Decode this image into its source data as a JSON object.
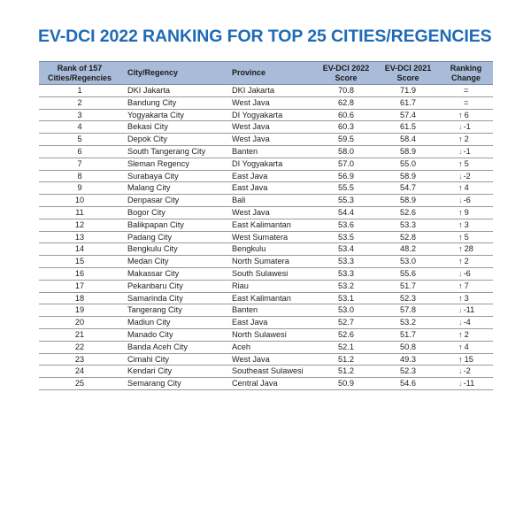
{
  "title": "EV-DCI 2022 RANKING FOR TOP 25 CITIES/REGENCIES",
  "headers": {
    "rank": "Rank of 157 Cities/Regencies",
    "city": "City/Regency",
    "province": "Province",
    "score2022": "EV-DCI 2022 Score",
    "score2021": "EV-DCI 2021 Score",
    "change": "Ranking Change"
  },
  "colors": {
    "title": "#1f6bb5",
    "header_bg": "#a8bbd8",
    "arrow_up": "#1a1a1a",
    "arrow_down": "#2f8fd0"
  },
  "rows": [
    {
      "rank": "1",
      "city": "DKI Jakarta",
      "province": "DKI Jakarta",
      "s22": "70.8",
      "s21": "71.9",
      "dir": "same",
      "change": "="
    },
    {
      "rank": "2",
      "city": "Bandung City",
      "province": "West Java",
      "s22": "62.8",
      "s21": "61.7",
      "dir": "same",
      "change": "="
    },
    {
      "rank": "3",
      "city": "Yogyakarta City",
      "province": "DI Yogyakarta",
      "s22": "60.6",
      "s21": "57.4",
      "dir": "up",
      "change": "6"
    },
    {
      "rank": "4",
      "city": "Bekasi City",
      "province": "West Java",
      "s22": "60.3",
      "s21": "61.5",
      "dir": "down",
      "change": "-1"
    },
    {
      "rank": "5",
      "city": "Depok City",
      "province": "West Java",
      "s22": "59.5",
      "s21": "58.4",
      "dir": "up",
      "change": "2"
    },
    {
      "rank": "6",
      "city": "South Tangerang City",
      "province": "Banten",
      "s22": "58.0",
      "s21": "58.9",
      "dir": "down",
      "change": "-1"
    },
    {
      "rank": "7",
      "city": "Sleman Regency",
      "province": "DI Yogyakarta",
      "s22": "57.0",
      "s21": "55.0",
      "dir": "up",
      "change": "5"
    },
    {
      "rank": "8",
      "city": "Surabaya City",
      "province": "East Java",
      "s22": "56.9",
      "s21": "58.9",
      "dir": "down",
      "change": "-2"
    },
    {
      "rank": "9",
      "city": "Malang City",
      "province": "East Java",
      "s22": "55.5",
      "s21": "54.7",
      "dir": "up",
      "change": "4"
    },
    {
      "rank": "10",
      "city": "Denpasar City",
      "province": "Bali",
      "s22": "55.3",
      "s21": "58.9",
      "dir": "down",
      "change": "-6"
    },
    {
      "rank": "11",
      "city": "Bogor City",
      "province": "West Java",
      "s22": "54.4",
      "s21": "52.6",
      "dir": "up",
      "change": "9"
    },
    {
      "rank": "12",
      "city": "Balikpapan City",
      "province": "East Kalimantan",
      "s22": "53.6",
      "s21": "53.3",
      "dir": "up",
      "change": "3"
    },
    {
      "rank": "13",
      "city": "Padang City",
      "province": "West Sumatera",
      "s22": "53.5",
      "s21": "52.8",
      "dir": "up",
      "change": "5"
    },
    {
      "rank": "14",
      "city": "Bengkulu City",
      "province": "Bengkulu",
      "s22": "53.4",
      "s21": "48.2",
      "dir": "up",
      "change": "28"
    },
    {
      "rank": "15",
      "city": "Medan City",
      "province": "North Sumatera",
      "s22": "53.3",
      "s21": "53.0",
      "dir": "up",
      "change": "2"
    },
    {
      "rank": "16",
      "city": "Makassar City",
      "province": "South Sulawesi",
      "s22": "53.3",
      "s21": "55.6",
      "dir": "down",
      "change": "-6"
    },
    {
      "rank": "17",
      "city": "Pekanbaru City",
      "province": "Riau",
      "s22": "53.2",
      "s21": "51.7",
      "dir": "up",
      "change": "7"
    },
    {
      "rank": "18",
      "city": "Samarinda City",
      "province": "East Kalimantan",
      "s22": "53.1",
      "s21": "52.3",
      "dir": "up",
      "change": "3"
    },
    {
      "rank": "19",
      "city": "Tangerang City",
      "province": "Banten",
      "s22": "53.0",
      "s21": "57.8",
      "dir": "down",
      "change": "-11"
    },
    {
      "rank": "20",
      "city": "Madiun City",
      "province": "East Java",
      "s22": "52.7",
      "s21": "53.2",
      "dir": "down",
      "change": "-4"
    },
    {
      "rank": "21",
      "city": "Manado City",
      "province": "North Sulawesi",
      "s22": "52.6",
      "s21": "51.7",
      "dir": "up",
      "change": "2"
    },
    {
      "rank": "22",
      "city": "Banda Aceh City",
      "province": "Aceh",
      "s22": "52.1",
      "s21": "50.8",
      "dir": "up",
      "change": "4"
    },
    {
      "rank": "23",
      "city": "Cimahi City",
      "province": "West Java",
      "s22": "51.2",
      "s21": "49.3",
      "dir": "up",
      "change": "15"
    },
    {
      "rank": "24",
      "city": "Kendari City",
      "province": "Southeast Sulawesi",
      "s22": "51.2",
      "s21": "52.3",
      "dir": "down",
      "change": "-2"
    },
    {
      "rank": "25",
      "city": "Semarang City",
      "province": "Central Java",
      "s22": "50.9",
      "s21": "54.6",
      "dir": "down",
      "change": "-11"
    }
  ]
}
